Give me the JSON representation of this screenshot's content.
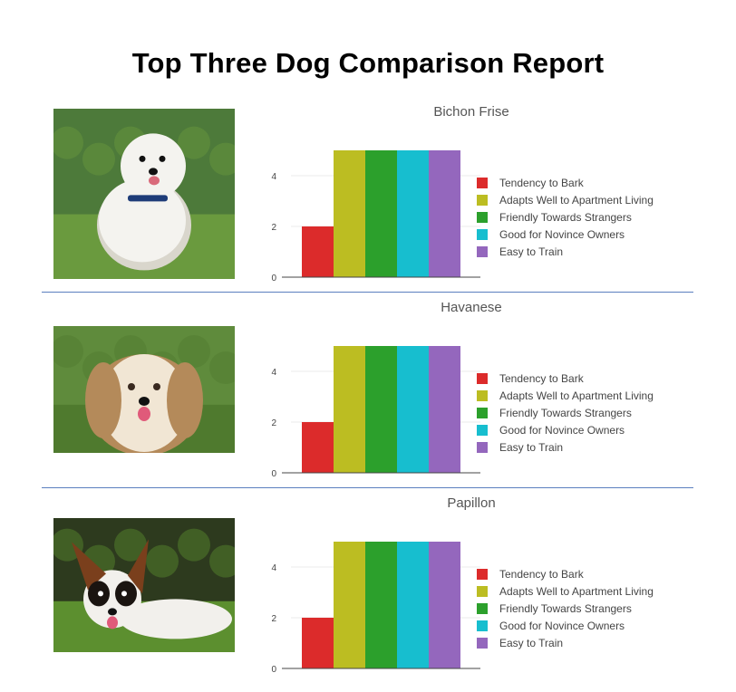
{
  "report": {
    "title": "Top Three Dog Comparison Report"
  },
  "colors": {
    "divider": "#5b7fbf",
    "axis": "#444444",
    "gridline": "#ebebeb",
    "label_text": "#444444",
    "title_text": "#555555"
  },
  "sections": [
    {
      "photo_icon": "bichon-frise-photo-icon",
      "photo_palette": {
        "bg": "#4d7a3a",
        "ground": "#6a9a3e",
        "dog": "#f4f3ef",
        "shade": "#d9d6cc",
        "accent": "#1e3c78"
      }
    },
    {
      "photo_icon": "havanese-photo-icon",
      "photo_palette": {
        "bg": "#5f8b3c",
        "ground": "#4f7a2e",
        "dog": "#f1e6d4",
        "shade": "#b48a5a",
        "accent": "#3a2a20"
      }
    },
    {
      "photo_icon": "papillon-photo-icon",
      "photo_palette": {
        "bg": "#2d3a1e",
        "ground": "#5c8f2f",
        "dog": "#f2f0ec",
        "shade": "#7a3f1c",
        "accent": "#1a1410"
      }
    }
  ],
  "chart_data": [
    {
      "type": "bar",
      "title": "Bichon Frise",
      "xlabel": "",
      "ylabel": "",
      "ylim": [
        0,
        5.5
      ],
      "yticks": [
        0,
        2,
        4
      ],
      "grid": true,
      "legend": "right",
      "series": [
        {
          "name": "Tendency to Bark",
          "value": 2,
          "color": "#dc2b2b"
        },
        {
          "name": "Adapts Well to Apartment Living",
          "value": 5,
          "color": "#bcbd22"
        },
        {
          "name": "Friendly Towards Strangers",
          "value": 5,
          "color": "#2ca02c"
        },
        {
          "name": "Good for Novince Owners",
          "value": 5,
          "color": "#17becf"
        },
        {
          "name": "Easy to Train",
          "value": 5,
          "color": "#9467bd"
        }
      ]
    },
    {
      "type": "bar",
      "title": "Havanese",
      "xlabel": "",
      "ylabel": "",
      "ylim": [
        0,
        5.5
      ],
      "yticks": [
        0,
        2,
        4
      ],
      "grid": true,
      "legend": "right",
      "series": [
        {
          "name": "Tendency to Bark",
          "value": 2,
          "color": "#dc2b2b"
        },
        {
          "name": "Adapts Well to Apartment Living",
          "value": 5,
          "color": "#bcbd22"
        },
        {
          "name": "Friendly Towards Strangers",
          "value": 5,
          "color": "#2ca02c"
        },
        {
          "name": "Good for Novince Owners",
          "value": 5,
          "color": "#17becf"
        },
        {
          "name": "Easy to Train",
          "value": 5,
          "color": "#9467bd"
        }
      ]
    },
    {
      "type": "bar",
      "title": "Papillon",
      "xlabel": "",
      "ylabel": "",
      "ylim": [
        0,
        5.5
      ],
      "yticks": [
        0,
        2,
        4
      ],
      "grid": true,
      "legend": "right",
      "series": [
        {
          "name": "Tendency to Bark",
          "value": 2,
          "color": "#dc2b2b"
        },
        {
          "name": "Adapts Well to Apartment Living",
          "value": 5,
          "color": "#bcbd22"
        },
        {
          "name": "Friendly Towards Strangers",
          "value": 5,
          "color": "#2ca02c"
        },
        {
          "name": "Good for Novince Owners",
          "value": 5,
          "color": "#17becf"
        },
        {
          "name": "Easy to Train",
          "value": 5,
          "color": "#9467bd"
        }
      ]
    }
  ]
}
